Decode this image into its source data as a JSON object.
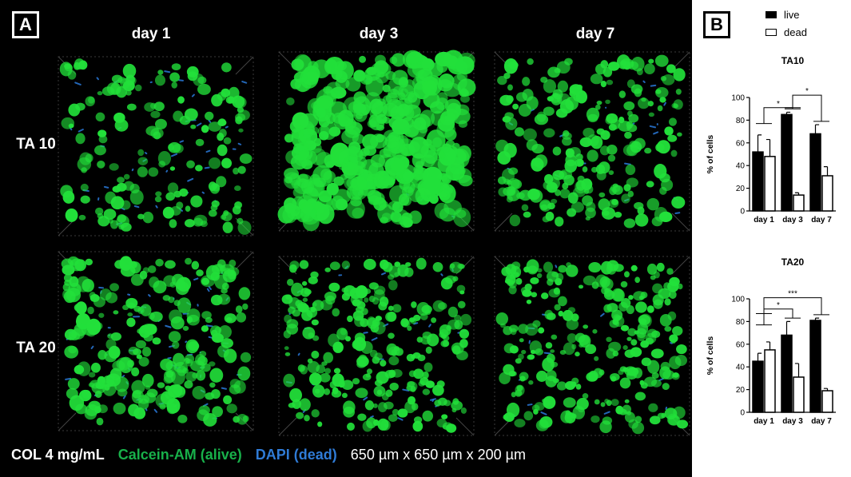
{
  "panel_a": {
    "label": "A",
    "columns": [
      "day 1",
      "day 3",
      "day 7"
    ],
    "rows": [
      "TA 10",
      "TA 20"
    ],
    "caption": {
      "material": "COL 4 mg/mL",
      "stain_alive": "Calcein-AM (alive)",
      "stain_dead": "DAPI (dead)",
      "dimensions": "650 µm x 650 µm x 200 µm"
    },
    "colors": {
      "alive": "#22e03a",
      "dead": "#2a78d8"
    }
  },
  "panel_b": {
    "label": "B",
    "legend": [
      {
        "name": "live",
        "fill": "#000000"
      },
      {
        "name": "dead",
        "fill": "#ffffff"
      }
    ]
  },
  "chart_data": [
    {
      "type": "bar",
      "title": "TA10",
      "ylabel": "% of cells",
      "xlabel": "",
      "categories": [
        "day 1",
        "day 3",
        "day 7"
      ],
      "ylim": [
        0,
        100
      ],
      "yticks": [
        0,
        20,
        40,
        60,
        80,
        100
      ],
      "series": [
        {
          "name": "live",
          "values": [
            52,
            85,
            68
          ],
          "errors": [
            15,
            2,
            8
          ]
        },
        {
          "name": "dead",
          "values": [
            48,
            14,
            31
          ],
          "errors": [
            15,
            2,
            8
          ]
        }
      ],
      "significance": [
        {
          "from": 0,
          "to": 1,
          "label": "*"
        },
        {
          "from": 1,
          "to": 2,
          "label": "*"
        }
      ]
    },
    {
      "type": "bar",
      "title": "TA20",
      "ylabel": "% of cells",
      "xlabel": "",
      "categories": [
        "day 1",
        "day 3",
        "day 7"
      ],
      "ylim": [
        0,
        100
      ],
      "yticks": [
        0,
        20,
        40,
        60,
        80,
        100
      ],
      "series": [
        {
          "name": "live",
          "values": [
            45,
            68,
            81
          ],
          "errors": [
            7,
            12,
            2
          ]
        },
        {
          "name": "dead",
          "values": [
            55,
            31,
            19
          ],
          "errors": [
            7,
            12,
            2
          ]
        }
      ],
      "significance": [
        {
          "from": 0,
          "to": 1,
          "label": "*"
        },
        {
          "from": 0,
          "to": 2,
          "label": "***"
        }
      ]
    }
  ]
}
